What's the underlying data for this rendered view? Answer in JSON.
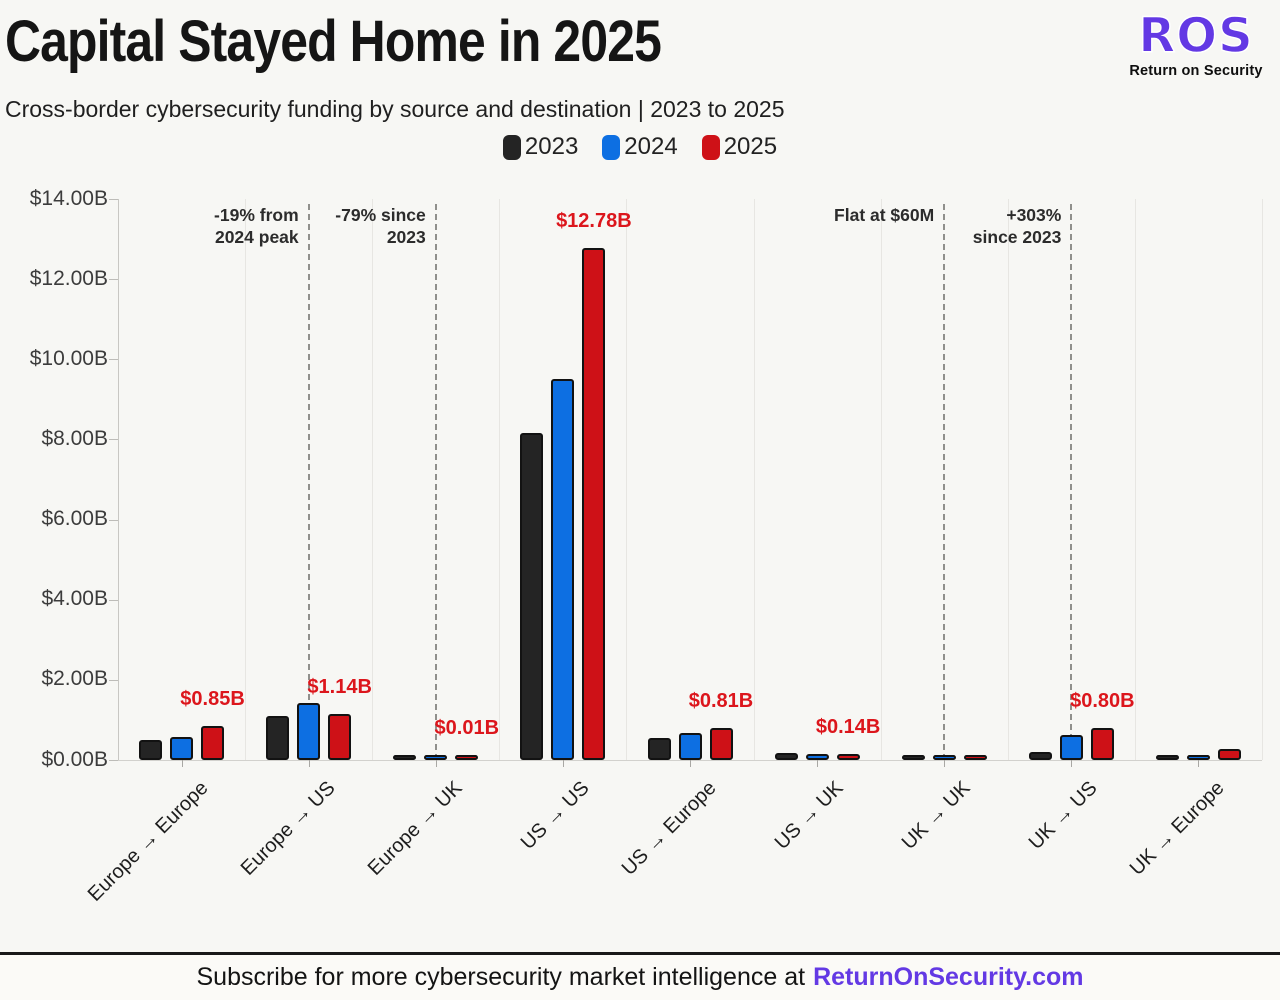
{
  "header": {
    "title": "Capital Stayed Home in 2025",
    "subtitle": "Cross-border cybersecurity funding by source and destination | 2023 to 2025",
    "logo": {
      "acronym": "ROS",
      "name": "Return on Security"
    }
  },
  "colors": {
    "background": "#f7f7f4",
    "bar_2023": "#242424",
    "bar_2024": "#0d6fe2",
    "bar_2025": "#ce1117",
    "value_label": "#dc161c",
    "brand_purple": "#6339e4",
    "annotation_line": "#90908c"
  },
  "chart_data": {
    "type": "bar",
    "title": "Capital Stayed Home in 2025",
    "xlabel": "",
    "ylabel": "",
    "ylim": [
      0,
      14
    ],
    "grid": "vertical-only",
    "legend_position": "top",
    "categories": [
      "Europe → Europe",
      "Europe → US",
      "Europe → UK",
      "US → US",
      "US → Europe",
      "US → UK",
      "UK → UK",
      "UK → US",
      "UK → Europe"
    ],
    "series": [
      {
        "name": "2023",
        "color": "#242424",
        "values": [
          0.5,
          1.1,
          0.05,
          8.15,
          0.55,
          0.17,
          0.06,
          0.2,
          0.05
        ]
      },
      {
        "name": "2024",
        "color": "#0d6fe2",
        "values": [
          0.58,
          1.41,
          0.04,
          9.52,
          0.67,
          0.16,
          0.06,
          0.62,
          0.13
        ]
      },
      {
        "name": "2025",
        "color": "#ce1117",
        "values": [
          0.85,
          1.14,
          0.01,
          12.78,
          0.81,
          0.14,
          0.06,
          0.8,
          0.28
        ]
      }
    ],
    "value_labels": [
      "$0.85B",
      "$1.14B",
      "$0.01B",
      "$12.78B",
      "$0.81B",
      "$0.14B",
      null,
      "$0.80B",
      null
    ],
    "y_ticks": [
      "$0.00B",
      "$2.00B",
      "$4.00B",
      "$6.00B",
      "$8.00B",
      "$10.00B",
      "$12.00B",
      "$14.00B"
    ],
    "annotations": [
      {
        "lines": [
          "-19% from",
          "2024 peak"
        ],
        "category": "Europe → US"
      },
      {
        "lines": [
          "-79% since",
          "2023"
        ],
        "category": "Europe → UK"
      },
      {
        "lines": [
          "Flat at $60M"
        ],
        "category": "UK → UK"
      },
      {
        "lines": [
          "+303%",
          "since 2023"
        ],
        "category": "UK → US"
      }
    ]
  },
  "footer": {
    "text": "Subscribe for more cybersecurity market intelligence at",
    "link": "ReturnOnSecurity.com"
  }
}
